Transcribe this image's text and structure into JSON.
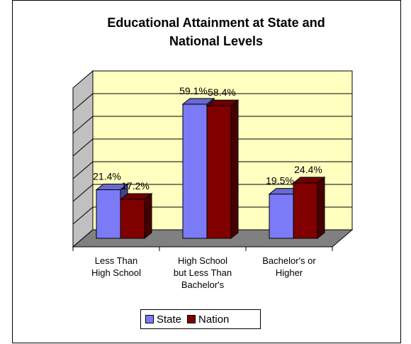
{
  "chart_data": {
    "type": "bar",
    "title": "Educational Attainment at State and National Levels",
    "title_lines": [
      "Educational Attainment at State and",
      "National Levels"
    ],
    "categories": [
      [
        "Less Than",
        "High School"
      ],
      [
        "High School",
        "but Less Than",
        "Bachelor's"
      ],
      [
        "Bachelor's or",
        "Higher"
      ]
    ],
    "series": [
      {
        "name": "State",
        "values": [
          21.4,
          59.1,
          19.5
        ],
        "labels": [
          "21.4%",
          "59.1%",
          "19.5%"
        ],
        "color": "#7b7bf7"
      },
      {
        "name": "Nation",
        "values": [
          17.2,
          58.4,
          24.4
        ],
        "labels": [
          "17.2%",
          "58.4%",
          "24.4%"
        ],
        "color": "#800000"
      }
    ],
    "ylim": [
      0,
      70
    ],
    "grid": true,
    "legend_position": "bottom",
    "plot_background": "#ffffc0",
    "floor_color": "#808080"
  }
}
